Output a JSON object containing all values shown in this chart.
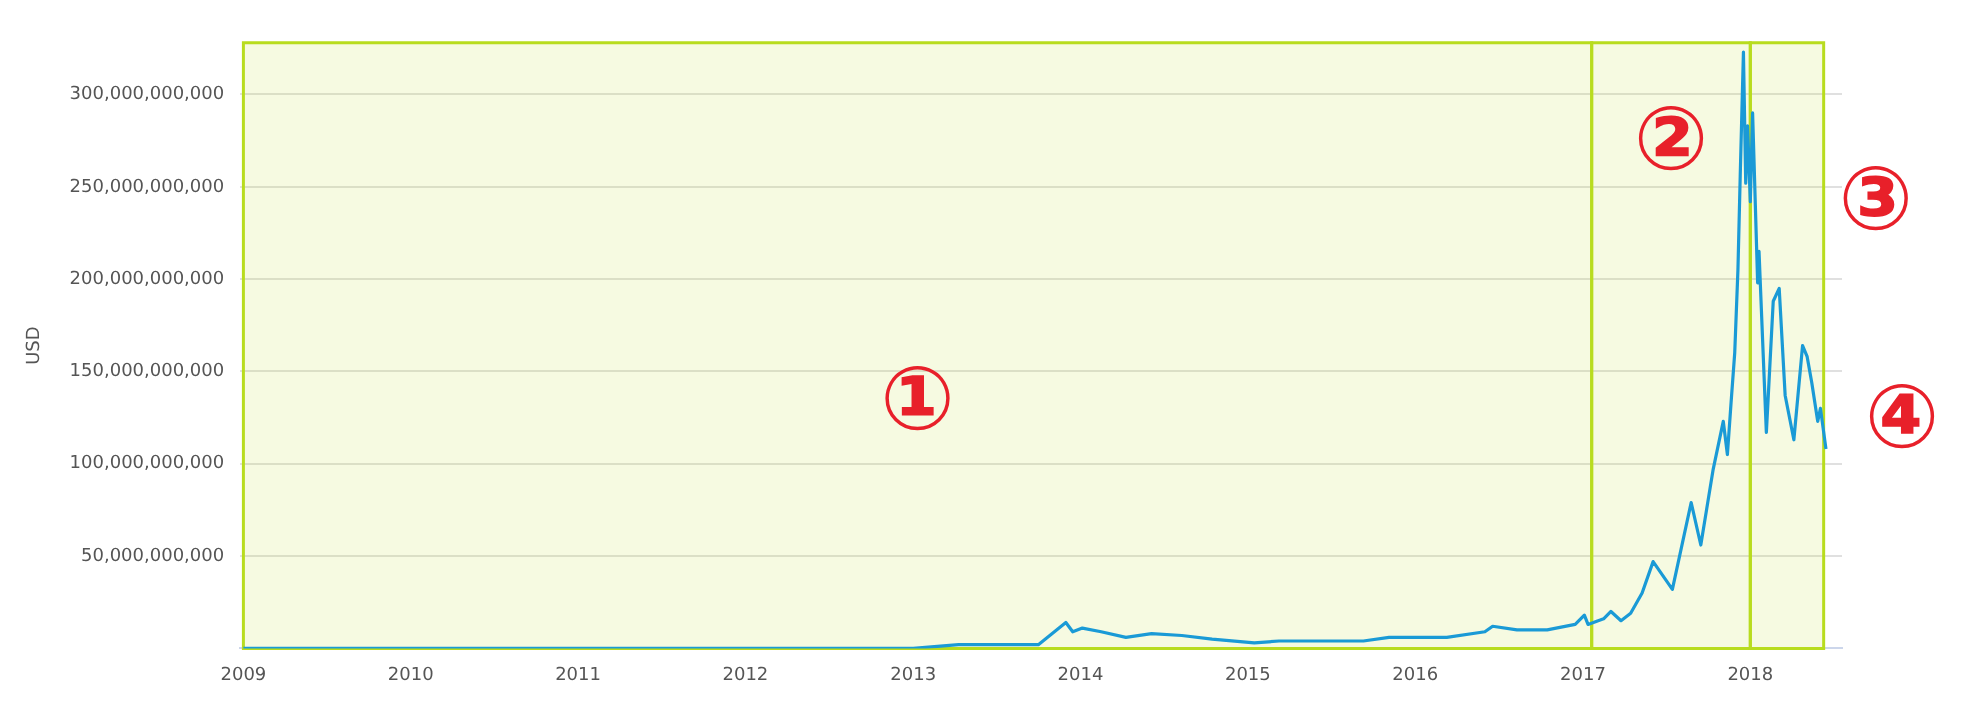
{
  "chart_data": {
    "type": "line",
    "ylabel": "USD",
    "x": [
      "2009-01-01",
      "2010-01-01",
      "2011-01-01",
      "2011-06-10",
      "2012-01-01",
      "2013-01-01",
      "2013-04-10",
      "2013-10-01",
      "2013-11-30",
      "2013-12-15",
      "2014-01-05",
      "2014-02-15",
      "2014-04-10",
      "2014-06-05",
      "2014-08-10",
      "2014-10-15",
      "2015-01-15",
      "2015-03-10",
      "2015-06-10",
      "2015-09-10",
      "2015-11-05",
      "2015-12-15",
      "2016-03-10",
      "2016-06-01",
      "2016-06-18",
      "2016-08-10",
      "2016-10-15",
      "2016-12-15",
      "2017-01-04",
      "2017-01-12",
      "2017-02-15",
      "2017-03-03",
      "2017-03-25",
      "2017-04-15",
      "2017-05-10",
      "2017-06-03",
      "2017-07-15",
      "2017-08-25",
      "2017-09-15",
      "2017-10-12",
      "2017-11-03",
      "2017-11-12",
      "2017-11-20",
      "2017-11-28",
      "2017-12-05",
      "2017-12-10",
      "2017-12-17",
      "2017-12-22",
      "2017-12-26",
      "2018-01-01",
      "2018-01-06",
      "2018-01-17",
      "2018-01-20",
      "2018-02-05",
      "2018-02-20",
      "2018-03-05",
      "2018-03-18",
      "2018-04-06",
      "2018-04-25",
      "2018-05-05",
      "2018-05-15",
      "2018-05-28",
      "2018-06-03",
      "2018-06-15"
    ],
    "series": [
      {
        "color": "#1a9ad6",
        "values": [
          0,
          0,
          0,
          0,
          0,
          0,
          2000000000.0,
          2000000000.0,
          14000000000.0,
          9000000000.0,
          11000000000.0,
          9000000000.0,
          6000000000.0,
          8000000000.0,
          7000000000.0,
          5000000000.0,
          3000000000.0,
          4000000000.0,
          4000000000.0,
          4000000000.0,
          6000000000.0,
          6000000000.0,
          6000000000.0,
          9000000000.0,
          12000000000.0,
          10000000000.0,
          10000000000.0,
          13000000000.0,
          18000000000.0,
          13000000000.0,
          16000000000.0,
          20000000000.0,
          15000000000.0,
          19000000000.0,
          30000000000.0,
          47000000000.0,
          32000000000.0,
          79000000000.0,
          56000000000.0,
          97000000000.0,
          123000000000.0,
          105000000000.0,
          133000000000.0,
          160000000000.0,
          205000000000.0,
          256000000000.0,
          323000000000.0,
          252000000000.0,
          283000000000.0,
          242000000000.0,
          290000000000.0,
          198000000000.0,
          215000000000.0,
          117000000000.0,
          188000000000.0,
          195000000000.0,
          137000000000.0,
          113000000000.0,
          164000000000.0,
          158000000000.0,
          144000000000.0,
          123000000000.0,
          130000000000.0,
          108000000000.0
        ]
      }
    ],
    "xlim": [
      "2008-12-25",
      "2018-07-20"
    ],
    "xticks": [
      "2009",
      "2010",
      "2011",
      "2012",
      "2013",
      "2014",
      "2015",
      "2016",
      "2017",
      "2018"
    ],
    "ylim": [
      0,
      328000000000
    ],
    "yticks": [
      {
        "value": 0,
        "label": null
      },
      {
        "value": 50000000000,
        "label": "50,000,000,000"
      },
      {
        "value": 100000000000,
        "label": "100,000,000,000"
      },
      {
        "value": 150000000000,
        "label": "150,000,000,000"
      },
      {
        "value": 200000000000,
        "label": "200,000,000,000"
      },
      {
        "value": 250000000000,
        "label": "250,000,000,000"
      },
      {
        "value": 300000000000,
        "label": "300,000,000,000"
      }
    ],
    "grid": "y",
    "legend": false,
    "marker": "none",
    "line_style": "solid",
    "bands": [
      {
        "axis": "x",
        "from": "2009-01-01",
        "to": "2017-01-20",
        "label": "①",
        "color": "#b8dc1e"
      },
      {
        "axis": "x",
        "from": "2017-01-20",
        "to": "2018-01-01",
        "label": "②",
        "color": "#b8dc1e"
      },
      {
        "axis": "x",
        "from": "2018-01-01",
        "to": "2018-06-10",
        "label": "③",
        "color": "#b8dc1e"
      }
    ],
    "annotations": [
      "④"
    ]
  }
}
